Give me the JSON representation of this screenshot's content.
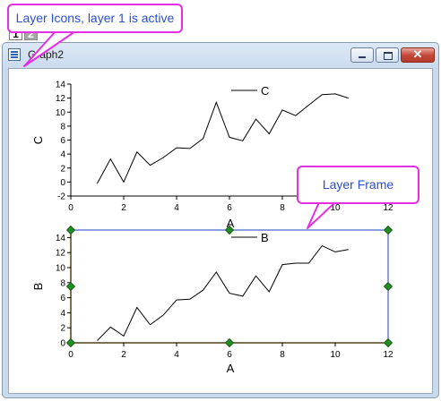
{
  "window": {
    "title": "Graph2",
    "icon": "graph-window-icon",
    "controls": {
      "minimize": "minimize-icon",
      "maximize": "maximize-icon",
      "close_glyph": "✕"
    }
  },
  "layer_tabs": [
    {
      "label": "1",
      "state": "active"
    },
    {
      "label": "2",
      "state": "inactive"
    }
  ],
  "callouts": {
    "layer_icons": "Layer Icons, layer 1 is active",
    "layer_frame": "Layer Frame"
  },
  "colors": {
    "callout_border": "#e62ee6",
    "callout_text": "#2a4fd0",
    "frame_blue": "#1a3fc8",
    "frame_yellow": "#e8c23a",
    "handle_green": "#1f8f1f"
  },
  "chart_data": [
    {
      "type": "line",
      "layer": 1,
      "xlabel": "A",
      "ylabel": "C",
      "legend": {
        "entry": "C",
        "placement": "top-center"
      },
      "xlim": [
        0,
        12
      ],
      "ylim": [
        -2,
        14
      ],
      "x_ticks": [
        0,
        2,
        4,
        6,
        8,
        10,
        12
      ],
      "y_ticks": [
        -2,
        0,
        2,
        4,
        6,
        8,
        10,
        12,
        14
      ],
      "series": [
        {
          "name": "C",
          "x": [
            1,
            1.5,
            2,
            2.5,
            3,
            3.5,
            4,
            4.5,
            5,
            5.5,
            6,
            6.5,
            7,
            7.5,
            8,
            8.5,
            9,
            9.5,
            10,
            10.5
          ],
          "y": [
            -0.2,
            3.3,
            0.0,
            4.3,
            2.4,
            3.5,
            4.9,
            4.8,
            6.2,
            11.4,
            6.4,
            5.9,
            9.0,
            6.9,
            10.3,
            9.5,
            11.0,
            12.5,
            12.6,
            12.0
          ]
        }
      ]
    },
    {
      "type": "line",
      "layer": 2,
      "xlabel": "A",
      "ylabel": "B",
      "legend": {
        "entry": "B",
        "placement": "top-center"
      },
      "xlim": [
        0,
        12
      ],
      "ylim": [
        0,
        15
      ],
      "x_ticks": [
        0,
        2,
        4,
        6,
        8,
        10,
        12
      ],
      "y_ticks": [
        0,
        2,
        4,
        6,
        8,
        10,
        12,
        14
      ],
      "series": [
        {
          "name": "B",
          "x": [
            1,
            1.5,
            2,
            2.5,
            3,
            3.5,
            4,
            4.5,
            5,
            5.5,
            6,
            6.5,
            7,
            7.5,
            8,
            8.5,
            9,
            9.5,
            10,
            10.5
          ],
          "y": [
            0.3,
            2.1,
            0.9,
            4.7,
            2.4,
            3.7,
            5.7,
            5.8,
            7.0,
            9.4,
            6.6,
            6.2,
            8.9,
            6.8,
            10.4,
            10.6,
            10.6,
            12.9,
            12.1,
            12.4
          ]
        }
      ]
    }
  ]
}
